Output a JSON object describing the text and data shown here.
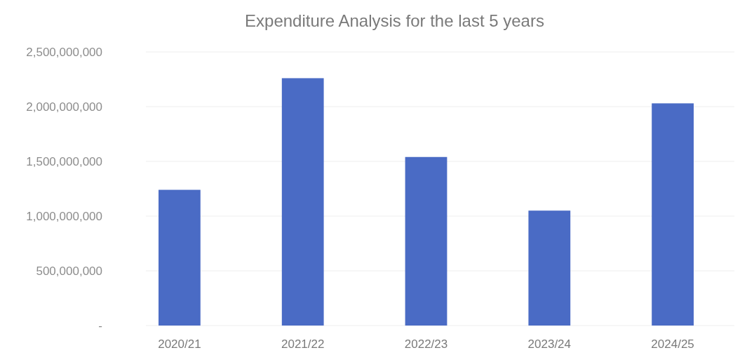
{
  "chart_data": {
    "type": "bar",
    "title": "Expenditure Analysis for the last 5 years",
    "categories": [
      "2020/21",
      "2021/22",
      "2022/23",
      "2023/24",
      "2024/25"
    ],
    "values": [
      1240000000,
      2260000000,
      1540000000,
      1050000000,
      2030000000
    ],
    "color": "#4a6bc5",
    "ylim": [
      0,
      2500000000
    ],
    "yticks": [
      {
        "value": 0,
        "label": "-"
      },
      {
        "value": 500000000,
        "label": "500,000,000"
      },
      {
        "value": 1000000000,
        "label": "1,000,000,000"
      },
      {
        "value": 1500000000,
        "label": "1,500,000,000"
      },
      {
        "value": 2000000000,
        "label": "2,000,000,000"
      },
      {
        "value": 2500000000,
        "label": "2,500,000,000"
      }
    ],
    "grid": true
  }
}
